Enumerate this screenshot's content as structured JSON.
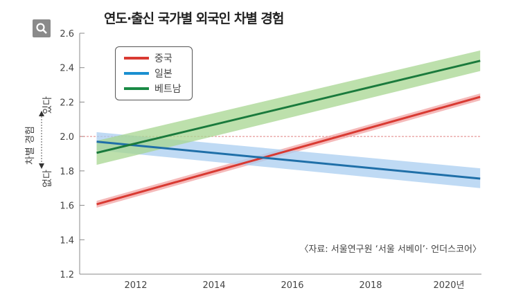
{
  "title": "연도·출신 국가별 외국인 차별 경험",
  "zoom_icon": "magnifier-icon",
  "source": "〈자료: 서울연구원 ‘서울 서베이’· 언더스코어〉",
  "y_axis_annotation": {
    "top": "있다",
    "label": "차별 경험",
    "bottom": "없다"
  },
  "chart_data": {
    "type": "line",
    "title": "연도·출신 국가별 외국인 차별 경험",
    "xlabel": "",
    "ylabel": "차별 경험",
    "xlim": [
      2010.2,
      2020.8
    ],
    "ylim": [
      1.2,
      2.6
    ],
    "x_ticks": [
      2012,
      2014,
      2016,
      2018,
      2020
    ],
    "x_tick_labels": [
      "2012",
      "2014",
      "2016",
      "2018",
      "2020년"
    ],
    "y_ticks": [
      1.2,
      1.4,
      1.6,
      1.8,
      2.0,
      2.2,
      2.4,
      2.6
    ],
    "y_tick_labels": [
      "1.2",
      "1.4",
      "1.6",
      "1.8",
      "2.0",
      "2.2",
      "2.4",
      "2.6"
    ],
    "reference_line": 2.0,
    "legend_position": "top-left",
    "grid": false,
    "series": [
      {
        "name": "중국",
        "color": "#d93a32",
        "band_color": "#f2a3a3",
        "x": [
          2011,
          2020.8
        ],
        "y": [
          1.606,
          2.23
        ],
        "lower": [
          1.586,
          2.21
        ],
        "upper": [
          1.626,
          2.25
        ]
      },
      {
        "name": "일본",
        "color": "#1f6fa8",
        "band_color": "#a9cdf0",
        "x": [
          2011,
          2020.8
        ],
        "y": [
          1.97,
          1.755
        ],
        "lower": [
          1.92,
          1.7
        ],
        "upper": [
          2.025,
          1.815
        ]
      },
      {
        "name": "베트남",
        "color": "#1a7a3c",
        "band_color": "#a7d690",
        "x": [
          2011,
          2020.8
        ],
        "y": [
          1.905,
          2.44
        ],
        "lower": [
          1.835,
          2.38
        ],
        "upper": [
          1.975,
          2.5
        ]
      }
    ]
  }
}
